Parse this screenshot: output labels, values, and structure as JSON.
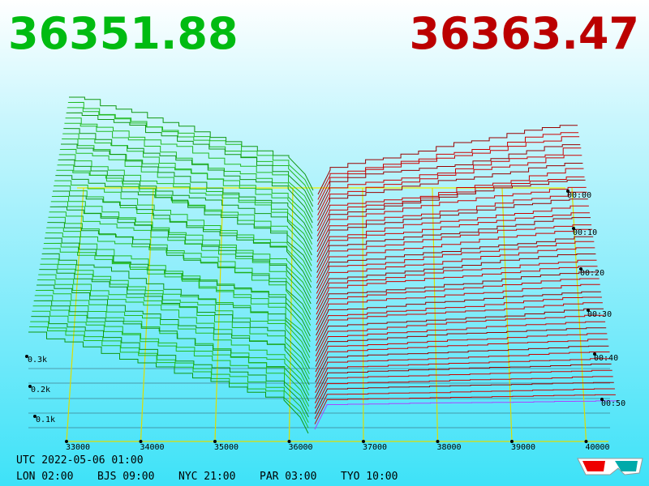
{
  "header": {
    "bid": "36351.88",
    "ask": "36363.47"
  },
  "axis": {
    "price_labels": [
      "33000",
      "34000",
      "35000",
      "36000",
      "37000",
      "38000",
      "39000",
      "40000"
    ],
    "depth_labels": [
      "0.3k",
      "0.2k",
      "0.1k"
    ],
    "time_labels": [
      "00:00",
      "00:10",
      "00:20",
      "00:30",
      "00:40",
      "00:50"
    ]
  },
  "footer": {
    "utc": "UTC 2022-05-06 01:00",
    "cities": [
      "LON 02:00",
      "BJS 09:00",
      "NYC 21:00",
      "PAR 03:00",
      "TYO 10:00"
    ]
  }
}
